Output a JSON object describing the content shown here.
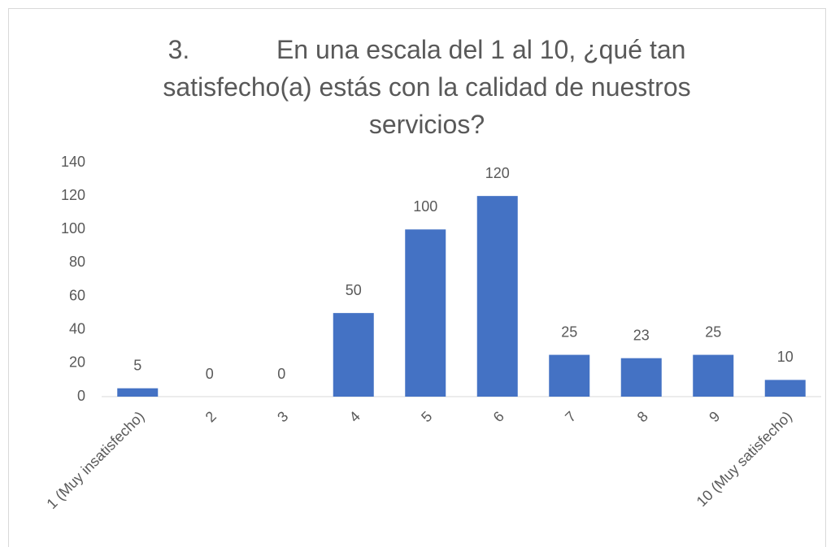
{
  "chart_data": {
    "type": "bar",
    "title": "3.            En una escala del 1 al 10, ¿qué tan satisfecho(a) estás con la calidad de nuestros servicios?",
    "categories": [
      "1 (Muy insatisfecho)",
      "2",
      "3",
      "4",
      "5",
      "6",
      "7",
      "8",
      "9",
      "10 (Muy satisfecho)"
    ],
    "values": [
      5,
      0,
      0,
      50,
      100,
      120,
      25,
      23,
      25,
      10
    ],
    "color": "#4472c4",
    "ylim": [
      0,
      140
    ],
    "yticks": [
      0,
      20,
      40,
      60,
      80,
      100,
      120,
      140
    ],
    "grid": false
  }
}
